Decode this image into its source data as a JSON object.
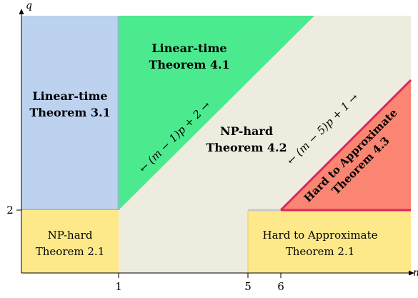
{
  "axes": {
    "x_label": "m",
    "y_label": "q",
    "x_ticks": [
      "1",
      "5",
      "6"
    ],
    "y_ticks": [
      "2"
    ]
  },
  "regions": {
    "lt31": {
      "line1": "Linear-time",
      "line2": "Theorem 3.1",
      "color": "#BCD2EE"
    },
    "lt41": {
      "line1": "Linear-time",
      "line2": "Theorem 4.1",
      "color": "#4CEA8F"
    },
    "nph42": {
      "line1": "NP-hard",
      "line2": "Theorem 4.2",
      "color": "#EDECDF"
    },
    "hta43": {
      "line1": "Hard to Approximate",
      "line2": "Theorem 4.3",
      "color": "#F98572"
    },
    "nph21": {
      "line1": "NP-hard",
      "line2": "Theorem 2.1",
      "color": "#FEE98A"
    },
    "hta21": {
      "line1": "Hard to Approximate",
      "line2": "Theorem 2.1",
      "color": "#FEE98A"
    }
  },
  "boundary_labels": {
    "left": "← (m − 1)p + 2 →",
    "right": "← (m − 5)p + 1 →"
  },
  "colors": {
    "boundary_red": "#E0245E",
    "boundary_blue": "#9DB4D8"
  }
}
